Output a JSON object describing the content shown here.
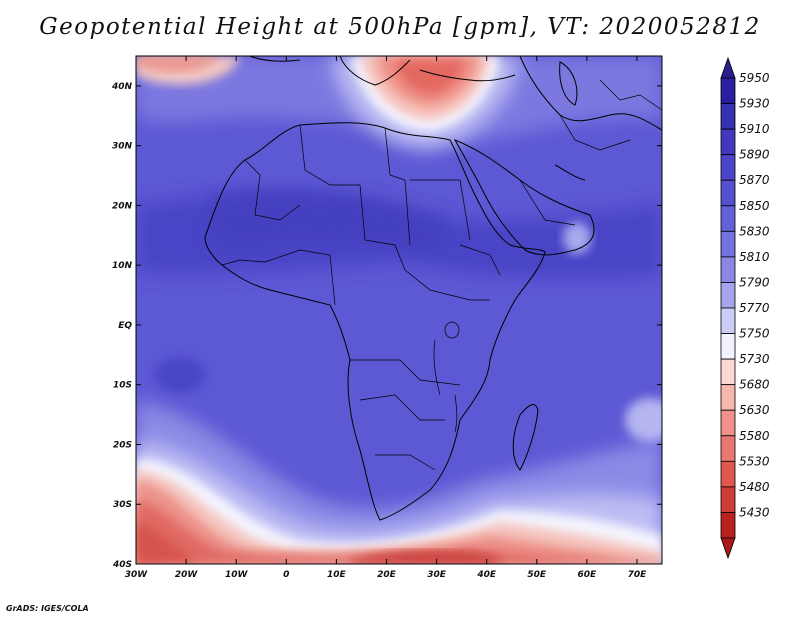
{
  "title": "Geopotential Height at 500hPa [gpm], VT: 2020052812",
  "credit": "GrADS: IGES/COLA",
  "map": {
    "projection": "latlon",
    "lon_range": [
      -30,
      75
    ],
    "lat_range": [
      -40,
      45
    ],
    "lat_ticks": [
      {
        "value": 40,
        "label": "40N"
      },
      {
        "value": 30,
        "label": "30N"
      },
      {
        "value": 20,
        "label": "20N"
      },
      {
        "value": 10,
        "label": "10N"
      },
      {
        "value": 0,
        "label": "EQ"
      },
      {
        "value": -10,
        "label": "10S"
      },
      {
        "value": -20,
        "label": "20S"
      },
      {
        "value": -30,
        "label": "30S"
      },
      {
        "value": -40,
        "label": "40S"
      }
    ],
    "lon_ticks": [
      {
        "value": -30,
        "label": "30W"
      },
      {
        "value": -20,
        "label": "20W"
      },
      {
        "value": -10,
        "label": "10W"
      },
      {
        "value": 0,
        "label": "0"
      },
      {
        "value": 10,
        "label": "10E"
      },
      {
        "value": 20,
        "label": "20E"
      },
      {
        "value": 30,
        "label": "30E"
      },
      {
        "value": 40,
        "label": "40E"
      },
      {
        "value": 50,
        "label": "50E"
      },
      {
        "value": 60,
        "label": "60E"
      },
      {
        "value": 70,
        "label": "70E"
      }
    ]
  },
  "colorbar": {
    "levels": [
      {
        "label": "5950",
        "color": "#2a1fa0"
      },
      {
        "label": "5930",
        "color": "#3730b0"
      },
      {
        "label": "5910",
        "color": "#4338bd"
      },
      {
        "label": "5890",
        "color": "#4b44c8"
      },
      {
        "label": "5870",
        "color": "#5550d0"
      },
      {
        "label": "5850",
        "color": "#6460d8"
      },
      {
        "label": "5830",
        "color": "#7672de"
      },
      {
        "label": "5810",
        "color": "#8a88e4"
      },
      {
        "label": "5790",
        "color": "#a6a6ee"
      },
      {
        "label": "5770",
        "color": "#cccdf6"
      },
      {
        "label": "5750",
        "color": "#f2f2fe"
      },
      {
        "label": "5730",
        "color": "#fbd8d3"
      },
      {
        "label": "5680",
        "color": "#f7b6ae"
      },
      {
        "label": "5630",
        "color": "#f0928a"
      },
      {
        "label": "5580",
        "color": "#e97670"
      },
      {
        "label": "5530",
        "color": "#e05752"
      },
      {
        "label": "5480",
        "color": "#d03c39"
      },
      {
        "label": "5430",
        "color": "#b82221"
      }
    ],
    "top_arrow_color": "#2a1f90",
    "bottom_arrow_color": "#a81818"
  }
}
